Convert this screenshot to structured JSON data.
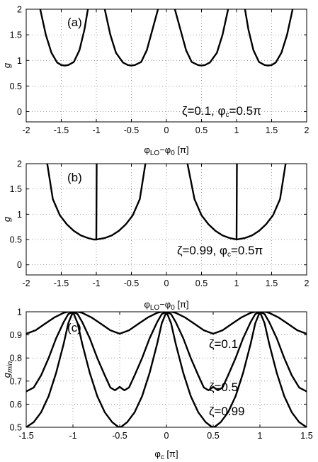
{
  "chart_data": [
    {
      "type": "line",
      "panel_label": "(a)",
      "xlabel": "φLO−φ0 [π]",
      "xlabel_parts": {
        "main1": "φ",
        "sub1": "LO",
        "mid": "−φ",
        "sub2": "0",
        "tail": " [π]"
      },
      "ylabel": "g",
      "xlim": [
        -2,
        2
      ],
      "ylim": [
        -0.2,
        2
      ],
      "xticks": [
        "-2",
        "-1.5",
        "-1",
        "-0.5",
        "0",
        "0.5",
        "1",
        "1.5",
        "2"
      ],
      "yticks": [
        "0",
        "0.5",
        "1",
        "1.5",
        "2"
      ],
      "grid": true,
      "annotation": "ζ=0.1, φc=0.5π",
      "annotation_parts": {
        "pre": "ζ=0.1, φ",
        "sub": "c",
        "post": "=0.5π"
      },
      "series": [
        {
          "x": [
            -1.8,
            -1.72,
            -1.64,
            -1.56,
            -1.5,
            -1.45,
            -1.4,
            -1.32,
            -1.24,
            -1.17,
            -1.12
          ],
          "y": [
            2.0,
            1.5,
            1.15,
            0.96,
            0.91,
            0.9,
            0.91,
            0.97,
            1.2,
            1.6,
            2.0
          ]
        },
        {
          "x": [
            -0.88,
            -0.8,
            -0.72,
            -0.62,
            -0.55,
            -0.5,
            -0.45,
            -0.36,
            -0.28,
            -0.2,
            -0.12
          ],
          "y": [
            2.0,
            1.5,
            1.15,
            0.96,
            0.91,
            0.9,
            0.91,
            0.97,
            1.2,
            1.6,
            2.0
          ]
        },
        {
          "x": [
            0.12,
            0.2,
            0.28,
            0.36,
            0.45,
            0.5,
            0.55,
            0.62,
            0.72,
            0.8,
            0.88
          ],
          "y": [
            2.0,
            1.6,
            1.2,
            0.97,
            0.91,
            0.9,
            0.91,
            0.96,
            1.15,
            1.5,
            2.0
          ]
        },
        {
          "x": [
            1.12,
            1.17,
            1.24,
            1.32,
            1.4,
            1.45,
            1.5,
            1.56,
            1.64,
            1.72,
            1.8
          ],
          "y": [
            2.0,
            1.6,
            1.2,
            0.97,
            0.91,
            0.9,
            0.91,
            0.96,
            1.15,
            1.5,
            2.0
          ]
        }
      ]
    },
    {
      "type": "line",
      "panel_label": "(b)",
      "xlabel": "φLO−φ0 [π]",
      "xlabel_parts": {
        "main1": "φ",
        "sub1": "LO",
        "mid": "−φ",
        "sub2": "0",
        "tail": " [π]"
      },
      "ylabel": "g",
      "xlim": [
        -2,
        2
      ],
      "ylim": [
        -0.2,
        2
      ],
      "xticks": [
        "-2",
        "-1.5",
        "-1",
        "-0.5",
        "0",
        "0.5",
        "1",
        "1.5",
        "2"
      ],
      "yticks": [
        "0",
        "0.5",
        "1",
        "1.5",
        "2"
      ],
      "grid": true,
      "annotation": "ζ=0.99, φc=0.5π",
      "annotation_parts": {
        "pre": "ζ=0.99, φ",
        "sub": "c",
        "post": "=0.5π"
      },
      "series": [
        {
          "x": [
            -1.7,
            -1.62,
            -1.52,
            -1.42,
            -1.32,
            -1.22,
            -1.12,
            -1.04,
            -1.0,
            -0.995
          ],
          "y": [
            2.0,
            1.3,
            0.98,
            0.8,
            0.67,
            0.58,
            0.53,
            0.5,
            0.5,
            2.0
          ]
        },
        {
          "x": [
            -0.995,
            -0.96,
            -0.88,
            -0.78,
            -0.68,
            -0.58,
            -0.48,
            -0.38,
            -0.3
          ],
          "y": [
            0.5,
            0.51,
            0.53,
            0.58,
            0.67,
            0.8,
            0.98,
            1.3,
            2.0
          ]
        },
        {
          "x": [
            0.3,
            0.4,
            0.5,
            0.6,
            0.7,
            0.8,
            0.9,
            0.97,
            1.0,
            1.005
          ],
          "y": [
            2.0,
            1.3,
            0.98,
            0.8,
            0.67,
            0.58,
            0.53,
            0.51,
            0.5,
            2.0
          ]
        },
        {
          "x": [
            1.005,
            1.04,
            1.12,
            1.22,
            1.32,
            1.42,
            1.52,
            1.62,
            1.7
          ],
          "y": [
            0.5,
            0.51,
            0.53,
            0.58,
            0.67,
            0.8,
            0.98,
            1.3,
            2.0
          ]
        }
      ]
    },
    {
      "type": "line",
      "panel_label": "(c)",
      "xlabel": "φc [π]",
      "xlabel_parts": {
        "main1": "φ",
        "sub1": "c",
        "tail": " [π]"
      },
      "ylabel": "gmin",
      "ylabel_parts": {
        "main": "g",
        "sub": "min"
      },
      "xlim": [
        -1.5,
        1.5
      ],
      "ylim": [
        0.5,
        1
      ],
      "xticks": [
        "-1.5",
        "-1",
        "-0.5",
        "0",
        "0.5",
        "1",
        "1.5"
      ],
      "yticks": [
        "0.5",
        "0.6",
        "0.7",
        "0.8",
        "0.9",
        "1"
      ],
      "grid": true,
      "series": [
        {
          "name": "ζ=0.1",
          "x": [
            -1.5,
            -1.4,
            -1.3,
            -1.2,
            -1.1,
            -1.05,
            -1.0,
            -0.95,
            -0.9,
            -0.8,
            -0.7,
            -0.6,
            -0.5,
            -0.4,
            -0.3,
            -0.2,
            -0.1,
            -0.05,
            0.0,
            0.05,
            0.1,
            0.2,
            0.3,
            0.4,
            0.5,
            0.6,
            0.7,
            0.8,
            0.9,
            0.95,
            1.0,
            1.05,
            1.1,
            1.2,
            1.3,
            1.4,
            1.5
          ],
          "y": [
            0.905,
            0.92,
            0.948,
            0.975,
            0.995,
            1.0,
            1.0,
            1.0,
            0.995,
            0.975,
            0.948,
            0.92,
            0.905,
            0.92,
            0.948,
            0.975,
            0.995,
            1.0,
            1.0,
            1.0,
            0.995,
            0.975,
            0.948,
            0.92,
            0.905,
            0.92,
            0.948,
            0.975,
            0.995,
            1.0,
            1.0,
            1.0,
            0.995,
            0.975,
            0.948,
            0.92,
            0.905
          ]
        },
        {
          "name": "ζ=0.5",
          "x": [
            -1.5,
            -1.42,
            -1.34,
            -1.26,
            -1.18,
            -1.1,
            -1.05,
            -1.0,
            -0.95,
            -0.9,
            -0.82,
            -0.74,
            -0.66,
            -0.6,
            -0.55,
            -0.5,
            -0.45,
            -0.4,
            -0.34,
            -0.26,
            -0.18,
            -0.1,
            -0.05,
            0.0,
            0.05,
            0.1,
            0.18,
            0.26,
            0.34,
            0.4,
            0.45,
            0.5,
            0.55,
            0.6,
            0.66,
            0.74,
            0.82,
            0.9,
            0.95,
            1.0,
            1.05,
            1.1,
            1.18,
            1.26,
            1.34,
            1.42,
            1.5
          ],
          "y": [
            0.655,
            0.672,
            0.725,
            0.8,
            0.885,
            0.955,
            0.99,
            1.0,
            0.99,
            0.955,
            0.885,
            0.8,
            0.725,
            0.672,
            0.66,
            0.675,
            0.66,
            0.672,
            0.725,
            0.8,
            0.885,
            0.955,
            0.99,
            1.0,
            0.99,
            0.955,
            0.885,
            0.8,
            0.725,
            0.672,
            0.66,
            0.675,
            0.66,
            0.672,
            0.725,
            0.8,
            0.885,
            0.955,
            0.99,
            1.0,
            0.99,
            0.955,
            0.885,
            0.8,
            0.725,
            0.672,
            0.655
          ]
        },
        {
          "name": "ζ=0.99",
          "x": [
            -1.5,
            -1.42,
            -1.34,
            -1.26,
            -1.18,
            -1.1,
            -1.05,
            -1.0,
            -0.95,
            -0.9,
            -0.82,
            -0.74,
            -0.66,
            -0.58,
            -0.52,
            -0.5,
            -0.48,
            -0.42,
            -0.34,
            -0.26,
            -0.18,
            -0.1,
            -0.05,
            0.0,
            0.05,
            0.1,
            0.18,
            0.26,
            0.34,
            0.42,
            0.48,
            0.5,
            0.52,
            0.58,
            0.66,
            0.74,
            0.82,
            0.9,
            0.95,
            1.0,
            1.05,
            1.1,
            1.18,
            1.26,
            1.34,
            1.42,
            1.5
          ],
          "y": [
            0.5,
            0.522,
            0.565,
            0.635,
            0.735,
            0.86,
            0.95,
            1.0,
            0.95,
            0.86,
            0.735,
            0.635,
            0.565,
            0.522,
            0.503,
            0.5,
            0.503,
            0.522,
            0.565,
            0.635,
            0.735,
            0.86,
            0.95,
            1.0,
            0.95,
            0.86,
            0.735,
            0.635,
            0.565,
            0.522,
            0.503,
            0.5,
            0.503,
            0.522,
            0.565,
            0.635,
            0.735,
            0.86,
            0.95,
            1.0,
            0.95,
            0.86,
            0.735,
            0.635,
            0.565,
            0.522,
            0.5
          ]
        }
      ],
      "curve_labels": [
        "ζ=0.1",
        "ζ=0.5",
        "ζ=0.99"
      ],
      "curve_label_anchors": [
        {
          "x": 0.55,
          "y": 0.93
        },
        {
          "x": 0.55,
          "y": 0.68
        },
        {
          "x": 0.55,
          "y": 0.56
        }
      ]
    }
  ]
}
